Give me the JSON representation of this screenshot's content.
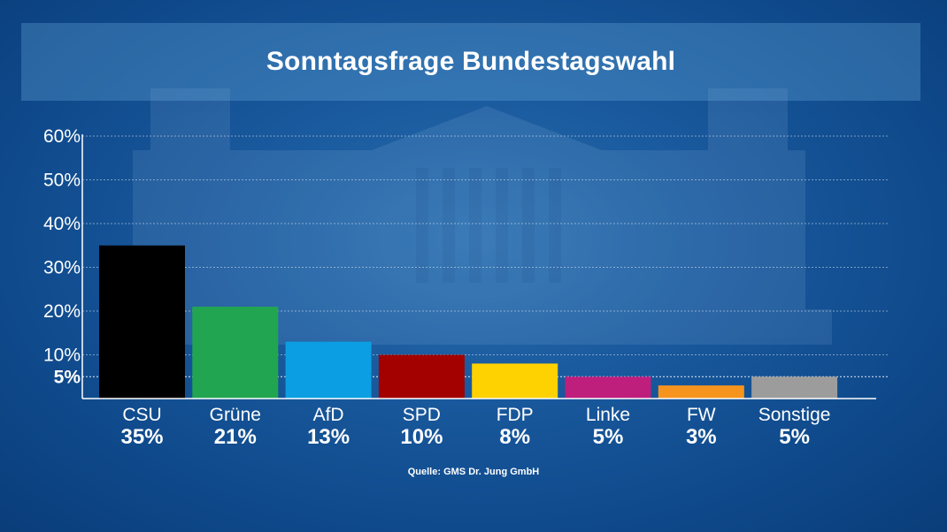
{
  "title": "Sonntagsfrage Bundestagswahl",
  "source": "Quelle: GMS Dr. Jung GmbH",
  "chart_data": {
    "type": "bar",
    "title": "Sonntagsfrage Bundestagswahl",
    "xlabel": "",
    "ylabel": "",
    "ylim": [
      0,
      60
    ],
    "yticks": [
      "60%",
      "50%",
      "40%",
      "30%",
      "20%",
      "10%"
    ],
    "yticks_values": [
      60,
      50,
      40,
      30,
      20,
      10
    ],
    "threshold": {
      "label": "5%",
      "value": 5
    },
    "grid": true,
    "categories": [
      "CSU",
      "Grüne",
      "AfD",
      "SPD",
      "FDP",
      "Linke",
      "FW",
      "Sonstige"
    ],
    "values": [
      35,
      21,
      13,
      10,
      8,
      5,
      3,
      5
    ],
    "value_labels": [
      "35%",
      "21%",
      "13%",
      "10%",
      "8%",
      "5%",
      "3%",
      "5%"
    ],
    "colors": [
      "#000000",
      "#22a550",
      "#0b9ee2",
      "#a30000",
      "#fed100",
      "#be1e7c",
      "#f7941d",
      "#9c9c9c"
    ]
  }
}
